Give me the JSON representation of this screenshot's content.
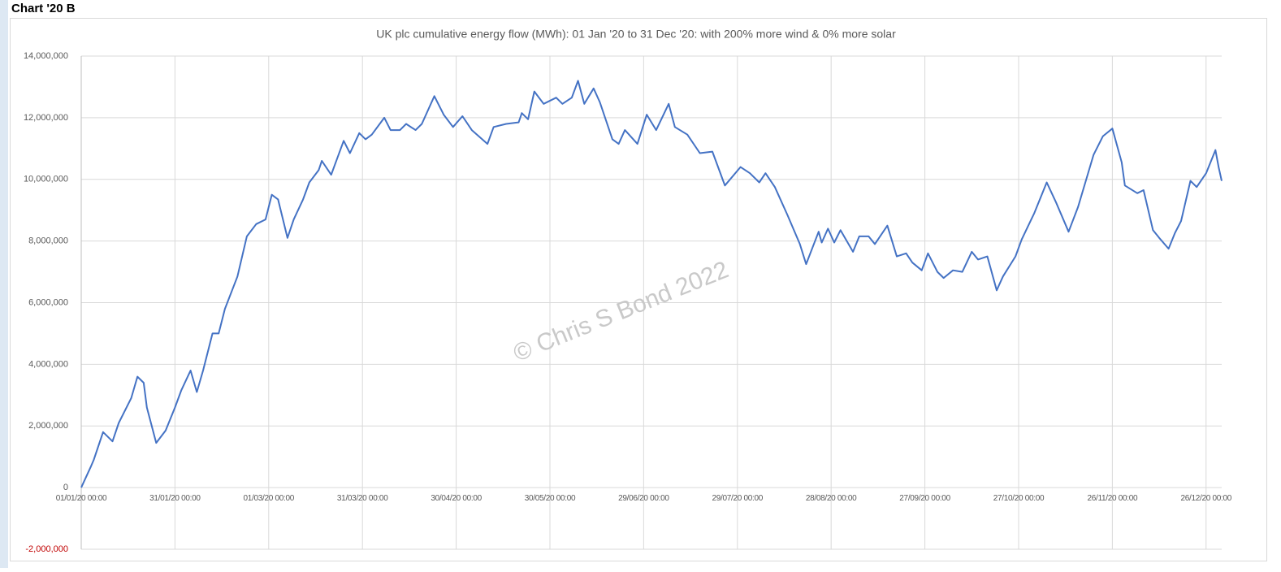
{
  "header": "Chart '20 B",
  "chart_data": {
    "type": "line",
    "title": "UK plc cumulative energy flow (MWh): 01 Jan '20 to 31 Dec '20: with 200% more wind & 0% more solar",
    "watermark": "© Chris S Bond  2022",
    "color": "#4472c4",
    "negative_label_color": "#c00000",
    "grid": true,
    "xlim": [
      "2020-01-01",
      "2020-12-31"
    ],
    "ylim": [
      -2000000,
      14000000
    ],
    "yticks": [
      {
        "value": -2000000,
        "label": "-2,000,000"
      },
      0,
      {
        "value": 2000000,
        "label": "2,000,000"
      },
      {
        "value": 4000000,
        "label": "4,000,000"
      },
      {
        "value": 6000000,
        "label": "6,000,000"
      },
      {
        "value": 8000000,
        "label": "8,000,000"
      },
      {
        "value": 10000000,
        "label": "10,000,000"
      },
      {
        "value": 12000000,
        "label": "12,000,000"
      },
      {
        "value": 14000000,
        "label": "14,000,000"
      }
    ],
    "xticks": [
      {
        "value": "2020-01-01",
        "label": "01/01/20 00:00"
      },
      {
        "value": "2020-01-31",
        "label": "31/01/20 00:00"
      },
      {
        "value": "2020-03-01",
        "label": "01/03/20 00:00"
      },
      {
        "value": "2020-03-31",
        "label": "31/03/20 00:00"
      },
      {
        "value": "2020-04-30",
        "label": "30/04/20 00:00"
      },
      {
        "value": "2020-05-30",
        "label": "30/05/20 00:00"
      },
      {
        "value": "2020-06-29",
        "label": "29/06/20 00:00"
      },
      {
        "value": "2020-07-29",
        "label": "29/07/20 00:00"
      },
      {
        "value": "2020-08-28",
        "label": "28/08/20 00:00"
      },
      {
        "value": "2020-09-27",
        "label": "27/09/20 00:00"
      },
      {
        "value": "2020-10-27",
        "label": "27/10/20 00:00"
      },
      {
        "value": "2020-11-26",
        "label": "26/11/20 00:00"
      },
      {
        "value": "2020-12-26",
        "label": "26/12/20 00:00"
      }
    ],
    "x": [
      "2020-01-01",
      "2020-01-04",
      "2020-01-05",
      "2020-01-08",
      "2020-01-11",
      "2020-01-13",
      "2020-01-17",
      "2020-01-19",
      "2020-01-21",
      "2020-01-22",
      "2020-01-25",
      "2020-01-28",
      "2020-01-31",
      "2020-02-02",
      "2020-02-05",
      "2020-02-07",
      "2020-02-09",
      "2020-02-12",
      "2020-02-14",
      "2020-02-16",
      "2020-02-20",
      "2020-02-23",
      "2020-02-26",
      "2020-02-29",
      "2020-03-02",
      "2020-03-04",
      "2020-03-07",
      "2020-03-09",
      "2020-03-12",
      "2020-03-14",
      "2020-03-17",
      "2020-03-18",
      "2020-03-21",
      "2020-03-23",
      "2020-03-25",
      "2020-03-27",
      "2020-03-30",
      "2020-04-01",
      "2020-04-03",
      "2020-04-07",
      "2020-04-09",
      "2020-04-12",
      "2020-04-14",
      "2020-04-17",
      "2020-04-19",
      "2020-04-23",
      "2020-04-26",
      "2020-04-29",
      "2020-05-02",
      "2020-05-05",
      "2020-05-10",
      "2020-05-12",
      "2020-05-16",
      "2020-05-20",
      "2020-05-21",
      "2020-05-23",
      "2020-05-25",
      "2020-05-28",
      "2020-06-01",
      "2020-06-03",
      "2020-06-06",
      "2020-06-08",
      "2020-06-10",
      "2020-06-13",
      "2020-06-15",
      "2020-06-19",
      "2020-06-21",
      "2020-06-23",
      "2020-06-27",
      "2020-06-30",
      "2020-07-03",
      "2020-07-07",
      "2020-07-09",
      "2020-07-13",
      "2020-07-17",
      "2020-07-21",
      "2020-07-25",
      "2020-07-30",
      "2020-08-02",
      "2020-08-05",
      "2020-08-07",
      "2020-08-10",
      "2020-08-14",
      "2020-08-18",
      "2020-08-20",
      "2020-08-24",
      "2020-08-25",
      "2020-08-27",
      "2020-08-29",
      "2020-08-31",
      "2020-09-04",
      "2020-09-06",
      "2020-09-09",
      "2020-09-11",
      "2020-09-15",
      "2020-09-18",
      "2020-09-21",
      "2020-09-23",
      "2020-09-26",
      "2020-09-28",
      "2020-10-01",
      "2020-10-03",
      "2020-10-06",
      "2020-10-09",
      "2020-10-12",
      "2020-10-14",
      "2020-10-17",
      "2020-10-20",
      "2020-10-22",
      "2020-10-26",
      "2020-10-28",
      "2020-11-01",
      "2020-11-05",
      "2020-11-08",
      "2020-11-12",
      "2020-11-15",
      "2020-11-20",
      "2020-11-23",
      "2020-11-26",
      "2020-11-29",
      "2020-11-30",
      "2020-12-04",
      "2020-12-06",
      "2020-12-09",
      "2020-12-11",
      "2020-12-14",
      "2020-12-16",
      "2020-12-18",
      "2020-12-21",
      "2020-12-23",
      "2020-12-26",
      "2020-12-29",
      "2020-12-30",
      "2020-12-31"
    ],
    "values": [
      0,
      660000,
      900000,
      1800000,
      1500000,
      2100000,
      2900000,
      3600000,
      3400000,
      2600000,
      1450000,
      1850000,
      2600000,
      3150000,
      3800000,
      3100000,
      3800000,
      5000000,
      5000000,
      5800000,
      6850000,
      8150000,
      8550000,
      8700000,
      9500000,
      9350000,
      8100000,
      8700000,
      9350000,
      9900000,
      10300000,
      10600000,
      10150000,
      10700000,
      11250000,
      10850000,
      11500000,
      11300000,
      11450000,
      12000000,
      11600000,
      11600000,
      11800000,
      11600000,
      11800000,
      12700000,
      12100000,
      11700000,
      12050000,
      11600000,
      11150000,
      11700000,
      11800000,
      11850000,
      12150000,
      11950000,
      12850000,
      12450000,
      12650000,
      12450000,
      12650000,
      13200000,
      12450000,
      12950000,
      12500000,
      11300000,
      11150000,
      11600000,
      11150000,
      12100000,
      11600000,
      12450000,
      11700000,
      11450000,
      10850000,
      10900000,
      9800000,
      10400000,
      10200000,
      9900000,
      10200000,
      9750000,
      8850000,
      7900000,
      7250000,
      8300000,
      7950000,
      8400000,
      7950000,
      8350000,
      7650000,
      8150000,
      8150000,
      7900000,
      8500000,
      7500000,
      7600000,
      7300000,
      7050000,
      7600000,
      7000000,
      6800000,
      7050000,
      7000000,
      7650000,
      7400000,
      7500000,
      6400000,
      6850000,
      7500000,
      8050000,
      8900000,
      9900000,
      9250000,
      8300000,
      9100000,
      10800000,
      11400000,
      11650000,
      10550000,
      9800000,
      9550000,
      9650000,
      8350000,
      8100000,
      7750000,
      8250000,
      8650000,
      9950000,
      9750000,
      10200000,
      10950000,
      10400000,
      9950000
    ]
  }
}
